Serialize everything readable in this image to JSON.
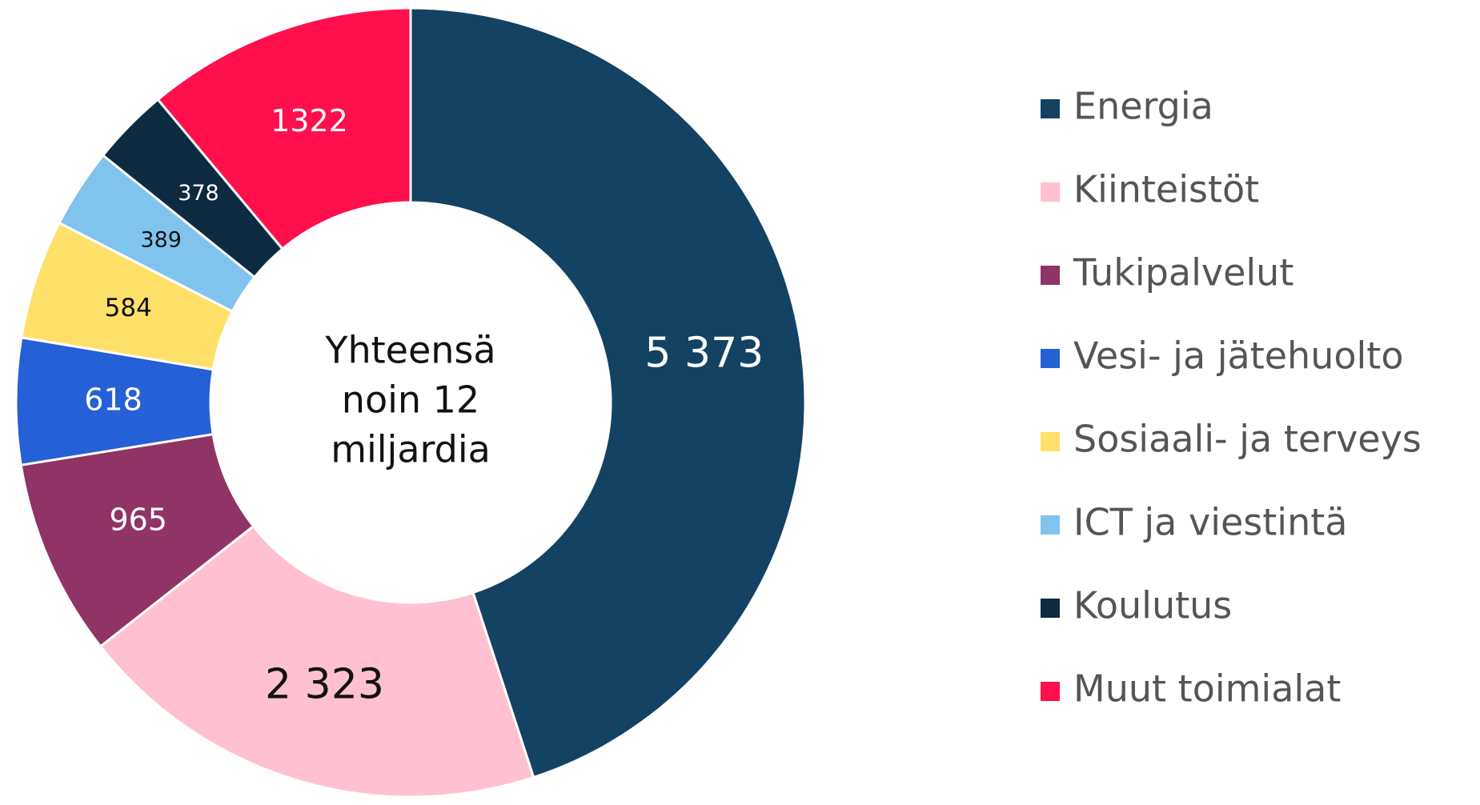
{
  "chart_data": {
    "type": "donut",
    "center_text": [
      "Yhteensä",
      "noin 12",
      "miljardia"
    ],
    "categories": [
      "Energia",
      "Kiinteistöt",
      "Tukipalvelut",
      "Vesi- ja jätehuolto",
      "Sosiaali- ja terveys",
      "ICT ja viestintä",
      "Koulutus",
      "Muut toimialat"
    ],
    "values": [
      5373,
      2323,
      965,
      618,
      584,
      389,
      378,
      1322
    ],
    "value_labels": [
      "5 373",
      "2 323",
      "965",
      "618",
      "584",
      "389",
      "378",
      "1322"
    ],
    "colors": [
      "#134263",
      "#ffc1d1",
      "#8f3465",
      "#2660d6",
      "#ffe16a",
      "#80c4ee",
      "#0c2a40",
      "#ff0f4c"
    ],
    "legend": "right"
  }
}
